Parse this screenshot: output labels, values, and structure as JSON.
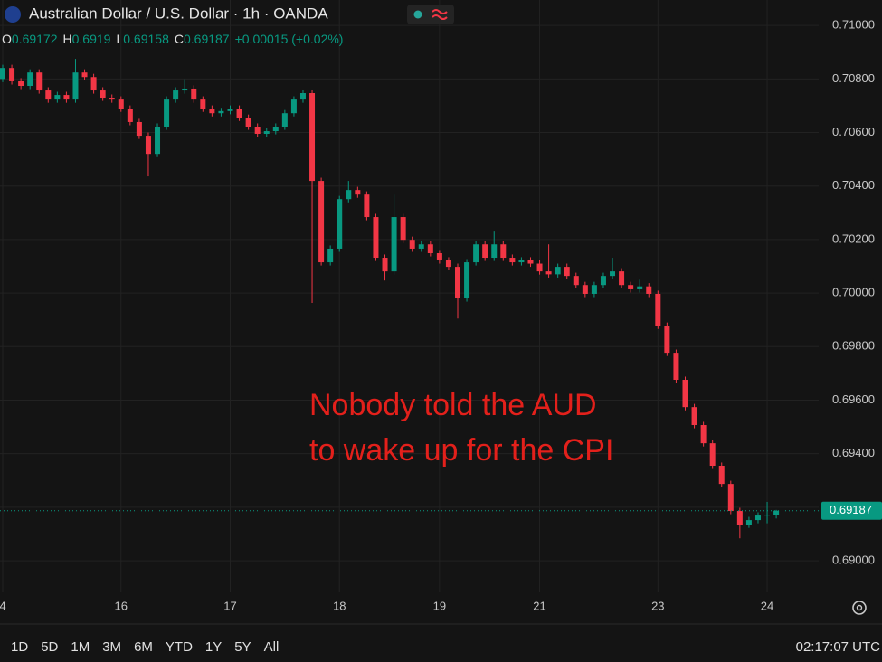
{
  "chart_data": {
    "type": "candlestick",
    "title": "Australian Dollar / U.S. Dollar · 1h · OANDA",
    "ohlc_labels": [
      "O",
      "H",
      "L",
      "C"
    ],
    "change": "+0.00015 (+0.02%)",
    "annotation": [
      "Nobody told the AUD",
      "to wake up for the CPI"
    ],
    "up_color": "#089981",
    "down_color": "#f23645",
    "annotation_color": "#e3201b",
    "grid": true,
    "categories": [
      "4",
      null,
      null,
      null,
      null,
      null,
      null,
      null,
      null,
      null,
      null,
      null,
      null,
      "16",
      null,
      null,
      null,
      null,
      null,
      null,
      null,
      null,
      null,
      null,
      null,
      "17",
      null,
      null,
      null,
      null,
      null,
      null,
      null,
      null,
      null,
      null,
      null,
      "18",
      null,
      null,
      null,
      null,
      null,
      null,
      null,
      null,
      null,
      null,
      "19",
      null,
      null,
      null,
      null,
      null,
      null,
      null,
      null,
      null,
      null,
      "21",
      null,
      null,
      null,
      null,
      null,
      null,
      null,
      null,
      null,
      null,
      null,
      null,
      "23",
      null,
      null,
      null,
      null,
      null,
      null,
      null,
      null,
      null,
      null,
      null,
      "24",
      null
    ],
    "open": [
      0.708,
      0.70841,
      0.70791,
      0.70774,
      0.70824,
      0.70757,
      0.70723,
      0.7074,
      0.70723,
      0.70824,
      0.70807,
      0.70757,
      0.7073,
      0.70723,
      0.70689,
      0.70639,
      0.70588,
      0.7052,
      0.70622,
      0.70723,
      0.70757,
      0.70764,
      0.70723,
      0.70689,
      0.70672,
      0.7068,
      0.70689,
      0.70655,
      0.70622,
      0.70595,
      0.70605,
      0.70622,
      0.70672,
      0.70723,
      0.70747,
      0.70419,
      0.70115,
      0.70166,
      0.70351,
      0.70385,
      0.70368,
      0.70284,
      0.70132,
      0.70081,
      0.70284,
      0.70199,
      0.70166,
      0.70182,
      0.70149,
      0.70122,
      0.70098,
      0.6998,
      0.70115,
      0.70182,
      0.70132,
      0.70182,
      0.70132,
      0.70115,
      0.70122,
      0.7011,
      0.70081,
      0.7007,
      0.70098,
      0.70064,
      0.7003,
      0.69997,
      0.7003,
      0.70064,
      0.70081,
      0.7003,
      0.70014,
      0.70025,
      0.69997,
      0.69878,
      0.69777,
      0.69676,
      0.69574,
      0.69507,
      0.69439,
      0.69355,
      0.69287,
      0.69186,
      0.69135,
      0.69152,
      0.69169,
      0.69172
    ],
    "high": [
      0.70853,
      0.70853,
      0.70803,
      0.70836,
      0.70836,
      0.70769,
      0.70752,
      0.70752,
      0.70875,
      0.70836,
      0.70819,
      0.70769,
      0.70742,
      0.70735,
      0.70701,
      0.70651,
      0.706,
      0.70634,
      0.70735,
      0.70769,
      0.70799,
      0.70776,
      0.70735,
      0.70701,
      0.70692,
      0.70701,
      0.70701,
      0.70667,
      0.70634,
      0.70617,
      0.70634,
      0.70684,
      0.70735,
      0.70759,
      0.70759,
      0.70431,
      0.70178,
      0.70363,
      0.70419,
      0.70397,
      0.7038,
      0.70296,
      0.70144,
      0.70368,
      0.70296,
      0.70211,
      0.70194,
      0.70194,
      0.70161,
      0.70134,
      0.7011,
      0.70127,
      0.70194,
      0.70194,
      0.70233,
      0.70194,
      0.70144,
      0.70134,
      0.70134,
      0.70122,
      0.70182,
      0.7011,
      0.7011,
      0.70076,
      0.70042,
      0.70042,
      0.70076,
      0.70132,
      0.70093,
      0.70042,
      0.7005,
      0.70037,
      0.70009,
      0.6989,
      0.69789,
      0.69688,
      0.69586,
      0.69519,
      0.69451,
      0.69367,
      0.69299,
      0.69198,
      0.69164,
      0.69181,
      0.6922,
      0.6919
    ],
    "low": [
      0.70788,
      0.70779,
      0.70762,
      0.70762,
      0.70745,
      0.70711,
      0.70711,
      0.70711,
      0.70711,
      0.70795,
      0.70745,
      0.70718,
      0.70711,
      0.70677,
      0.70627,
      0.70576,
      0.70436,
      0.70508,
      0.7061,
      0.70711,
      0.70745,
      0.70711,
      0.70677,
      0.7066,
      0.7066,
      0.70668,
      0.70643,
      0.7061,
      0.70583,
      0.70583,
      0.70593,
      0.7061,
      0.7066,
      0.70711,
      0.69963,
      0.70103,
      0.70103,
      0.70154,
      0.70339,
      0.70356,
      0.70272,
      0.7012,
      0.70047,
      0.70069,
      0.70187,
      0.70154,
      0.70154,
      0.70137,
      0.7011,
      0.70086,
      0.69905,
      0.69968,
      0.70103,
      0.7012,
      0.7012,
      0.7012,
      0.70103,
      0.70103,
      0.70098,
      0.70069,
      0.70058,
      0.70058,
      0.70052,
      0.70018,
      0.69985,
      0.69985,
      0.70018,
      0.70052,
      0.70018,
      0.70002,
      0.70002,
      0.69985,
      0.69866,
      0.69765,
      0.69664,
      0.69562,
      0.69495,
      0.69427,
      0.69343,
      0.69275,
      0.69174,
      0.69084,
      0.69123,
      0.6914,
      0.6914,
      0.69158
    ],
    "close": [
      0.70841,
      0.70791,
      0.70774,
      0.70824,
      0.70757,
      0.70723,
      0.7074,
      0.70723,
      0.70824,
      0.70807,
      0.70757,
      0.7073,
      0.70723,
      0.70689,
      0.70639,
      0.70588,
      0.7052,
      0.70622,
      0.70723,
      0.70757,
      0.70764,
      0.70723,
      0.70689,
      0.70672,
      0.7068,
      0.70689,
      0.70655,
      0.70622,
      0.70595,
      0.70605,
      0.70622,
      0.70672,
      0.70723,
      0.70747,
      0.70419,
      0.70115,
      0.70166,
      0.70351,
      0.70385,
      0.70368,
      0.70284,
      0.70132,
      0.70081,
      0.70284,
      0.70199,
      0.70166,
      0.70182,
      0.70149,
      0.70122,
      0.70098,
      0.6998,
      0.70115,
      0.70182,
      0.70132,
      0.70182,
      0.70132,
      0.70115,
      0.70122,
      0.7011,
      0.70081,
      0.7007,
      0.70098,
      0.70064,
      0.7003,
      0.69997,
      0.7003,
      0.70064,
      0.70081,
      0.7003,
      0.70014,
      0.70025,
      0.69997,
      0.69878,
      0.69777,
      0.69676,
      0.69574,
      0.69507,
      0.69439,
      0.69355,
      0.69287,
      0.69186,
      0.69135,
      0.69152,
      0.69169,
      0.69172,
      0.69187
    ],
    "ylim": [
      0.68882,
      0.71095
    ],
    "yticks": [
      {
        "value": 0.69,
        "label": "0.69000"
      },
      {
        "value": 0.692,
        "label": "0.69200"
      },
      {
        "value": 0.694,
        "label": "0.69400"
      },
      {
        "value": 0.696,
        "label": "0.69600"
      },
      {
        "value": 0.698,
        "label": "0.69800"
      },
      {
        "value": 0.7,
        "label": "0.70000"
      },
      {
        "value": 0.702,
        "label": "0.70200"
      },
      {
        "value": 0.704,
        "label": "0.70400"
      },
      {
        "value": 0.706,
        "label": "0.70600"
      },
      {
        "value": 0.708,
        "label": "0.70800"
      },
      {
        "value": 0.71,
        "label": "0.71000"
      }
    ]
  },
  "toolbar": {
    "ranges": [
      "1D",
      "5D",
      "1M",
      "3M",
      "6M",
      "YTD",
      "1Y",
      "5Y",
      "All"
    ],
    "clock": "02:17:07 UTC"
  }
}
